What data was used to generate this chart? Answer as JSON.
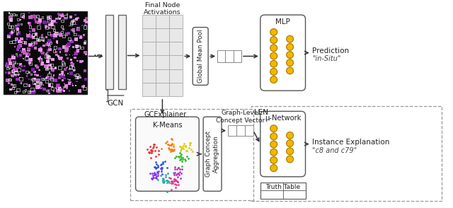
{
  "fig_width": 6.4,
  "fig_height": 2.94,
  "dpi": 100,
  "bg_color": "#ffffff",
  "neuron_fill": "#f0b800",
  "neuron_edge": "#b08000",
  "box_ec": "#555555",
  "dash_ec": "#999999",
  "arrow_color": "#333333",
  "text_color": "#222222",
  "hist_bg": "#0a0a0a",
  "cell_colors": [
    "#cc77cc",
    "#aa44aa",
    "#dd88dd",
    "#9933bb",
    "#bb66bb",
    "#ee99ee",
    "#7722aa"
  ],
  "white_sq_color": "#dddddd",
  "gcn_fill": "#eeeeee",
  "grid_fill": "#e8e8e8",
  "grid_ec": "#aaaaaa",
  "kmeans_colors": [
    "#e63333",
    "#ff7700",
    "#33bb33",
    "#2255ee",
    "#bb33bb",
    "#22aaaa",
    "#ddcc00",
    "#8833ee",
    "#ee3388"
  ],
  "labels": {
    "final_node_activations": "Final Node\nActivations",
    "global_mean_pool": "Global Mean Pool",
    "mlp": "MLP",
    "prediction": "Prediction",
    "prediction_italic": "\"in-Situ\"",
    "gcn": "GCN",
    "gcexplainer": "GCExplainer",
    "kmeans": "K-Means",
    "graph_concept_aggregation": "Graph Concept\nAggregation",
    "graph_level_concept_vector": "Graph-Level\nConcept Vector",
    "len_label": "LEN",
    "mu_network": "μ-Network",
    "instance_explanation": "Instance Explanation",
    "instance_italic": "\"c8 and c79\"",
    "truth_table": "Truth Table"
  }
}
